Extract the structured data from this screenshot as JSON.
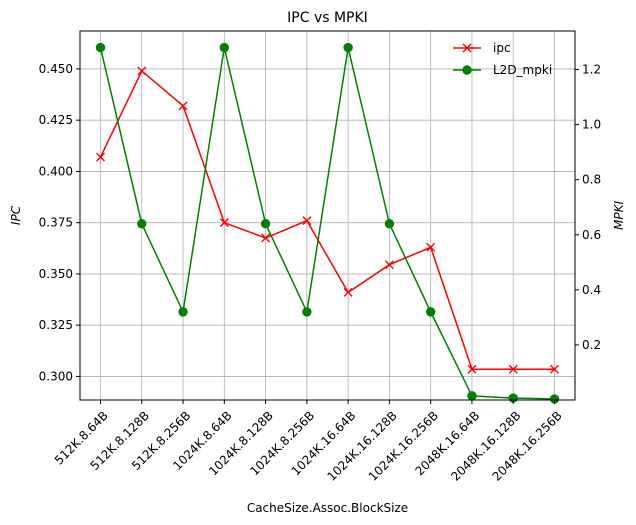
{
  "chart_data": {
    "type": "line",
    "title": "IPC vs MPKI",
    "xlabel": "CacheSize.Assoc.BlockSize",
    "ylabel_left": "IPC",
    "ylabel_right": "MPKI",
    "categories": [
      "512K.8.64B",
      "512K.8.128B",
      "512K.8.256B",
      "1024K.8.64B",
      "1024K.8.128B",
      "1024K.8.256B",
      "1024K.16.64B",
      "1024K.16.128B",
      "1024K.16.256B",
      "2048K.16.64B",
      "2048K.16.128B",
      "2048K.16.256B"
    ],
    "y_left": {
      "lim": [
        0.2885,
        0.4685
      ],
      "ticks": [
        0.3,
        0.325,
        0.35,
        0.375,
        0.4,
        0.425,
        0.45
      ],
      "tick_labels": [
        "0.300",
        "0.325",
        "0.350",
        "0.375",
        "0.400",
        "0.425",
        "0.450"
      ]
    },
    "y_right": {
      "lim": [
        0.0,
        1.34
      ],
      "ticks": [
        0.2,
        0.4,
        0.6,
        0.8,
        1.0,
        1.2
      ],
      "tick_labels": [
        "0.2",
        "0.4",
        "0.6",
        "0.8",
        "1.0",
        "1.2"
      ]
    },
    "grid": true,
    "legend_position": "top-right",
    "series": [
      {
        "name": "ipc",
        "axis": "left",
        "color": "#ff0000",
        "marker": "x",
        "values": [
          0.407,
          0.449,
          0.432,
          0.375,
          0.3675,
          0.376,
          0.341,
          0.3545,
          0.363,
          0.3035,
          0.3035,
          0.3035
        ]
      },
      {
        "name": "L2D_mpki",
        "axis": "right",
        "color": "#008000",
        "marker": "o",
        "values": [
          1.28,
          0.64,
          0.32,
          1.28,
          0.64,
          0.32,
          1.28,
          0.64,
          0.32,
          0.015,
          0.007,
          0.004
        ]
      }
    ]
  }
}
